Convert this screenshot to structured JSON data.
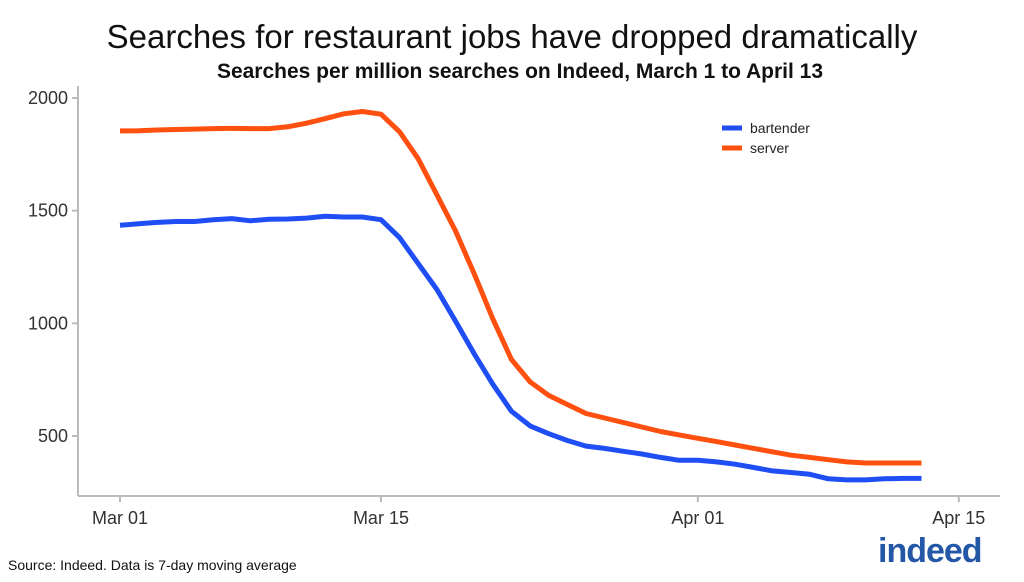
{
  "chart_data": {
    "type": "line",
    "title": "Searches for restaurant jobs have dropped dramatically",
    "subtitle": "Searches per million searches on Indeed, March 1 to April 13",
    "xlabel": "",
    "ylabel": "",
    "x_start": "2020-03-01",
    "x_end": "2020-04-13",
    "x_ticks": [
      "Mar 01",
      "Mar 15",
      "Apr 01",
      "Apr 15"
    ],
    "y_ticks": [
      500,
      1000,
      1500,
      2000
    ],
    "ylim": [
      280,
      2020
    ],
    "grid": false,
    "legend_position": "top-right",
    "series": [
      {
        "name": "bartender",
        "color": "#1f4ef5",
        "values": [
          1435,
          1442,
          1448,
          1452,
          1452,
          1460,
          1465,
          1455,
          1462,
          1463,
          1467,
          1475,
          1472,
          1472,
          1460,
          1380,
          1265,
          1150,
          1010,
          865,
          730,
          610,
          545,
          510,
          480,
          455,
          445,
          432,
          420,
          405,
          392,
          392,
          385,
          375,
          360,
          345,
          338,
          330,
          310,
          305,
          305,
          310,
          312,
          312
        ]
      },
      {
        "name": "server",
        "color": "#ff5010",
        "values": [
          1854,
          1855,
          1858,
          1860,
          1862,
          1864,
          1865,
          1864,
          1864,
          1872,
          1888,
          1908,
          1930,
          1940,
          1928,
          1850,
          1730,
          1570,
          1410,
          1220,
          1020,
          840,
          740,
          680,
          640,
          600,
          580,
          560,
          540,
          520,
          505,
          490,
          475,
          460,
          445,
          430,
          415,
          405,
          395,
          385,
          380,
          380,
          380,
          380
        ]
      }
    ]
  },
  "source": "Source: Indeed. Data is 7-day moving average",
  "logo": "indeed"
}
